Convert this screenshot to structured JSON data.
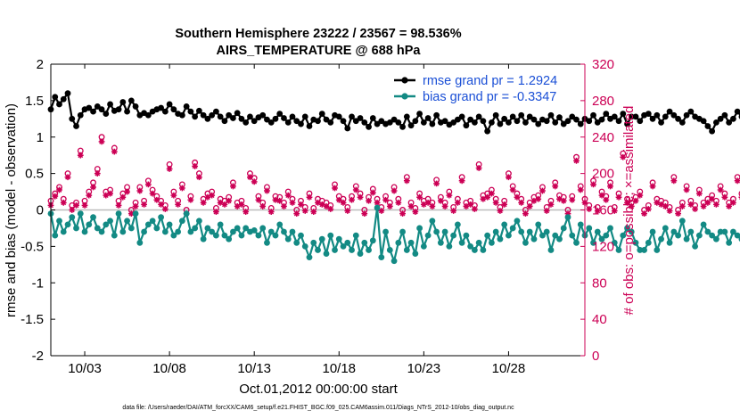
{
  "chart_data": {
    "type": "line",
    "title": "Southern Hemisphere 23222 / 23567 = 98.536%",
    "subtitle": "AIRS_TEMPERATURE @ 688 hPa",
    "xlabel": "Oct.01,2012 00:00:00 start",
    "ylabel_left": "rmse and bias (model - observation)",
    "ylabel_right": "# of obs: o=possible; ×=assimilated",
    "footer": "data file: /Users/raeder/DAI/ATM_forcXX/CAM6_setup/f.e21.FHIST_BGC.f09_025.CAM6assim.011/Diags_NTrS_2012-10/obs_diag_output.nc",
    "x_ticks": [
      {
        "label": "10/03",
        "day": 3
      },
      {
        "label": "10/08",
        "day": 8
      },
      {
        "label": "10/13",
        "day": 13
      },
      {
        "label": "10/18",
        "day": 18
      },
      {
        "label": "10/23",
        "day": 23
      },
      {
        "label": "10/28",
        "day": 28
      }
    ],
    "xlim_days": [
      1,
      32.5
    ],
    "ylim_left": [
      -2,
      2
    ],
    "y_ticks_left": [
      "-2",
      "-1.5",
      "-1",
      "-0.5",
      "0",
      "0.5",
      "1",
      "1.5",
      "2"
    ],
    "ylim_right": [
      0,
      320
    ],
    "y_ticks_right": [
      "0",
      "40",
      "80",
      "120",
      "160",
      "200",
      "240",
      "280",
      "320"
    ],
    "grid": false,
    "legend_position": "top-right",
    "series": [
      {
        "name": "rmse grand pr = 1.2924",
        "color": "#000000",
        "axis": "left",
        "x_day_start": 1.0,
        "x_day_step": 0.25,
        "values": [
          1.38,
          1.55,
          1.45,
          1.52,
          1.6,
          1.25,
          1.15,
          1.3,
          1.38,
          1.4,
          1.35,
          1.42,
          1.38,
          1.32,
          1.45,
          1.36,
          1.38,
          1.48,
          1.35,
          1.5,
          1.42,
          1.3,
          1.33,
          1.3,
          1.35,
          1.38,
          1.4,
          1.35,
          1.45,
          1.38,
          1.32,
          1.3,
          1.42,
          1.35,
          1.28,
          1.36,
          1.3,
          1.25,
          1.3,
          1.35,
          1.28,
          1.22,
          1.3,
          1.26,
          1.33,
          1.25,
          1.2,
          1.28,
          1.22,
          1.27,
          1.3,
          1.24,
          1.2,
          1.25,
          1.32,
          1.26,
          1.2,
          1.28,
          1.22,
          1.18,
          1.28,
          1.15,
          1.24,
          1.22,
          1.32,
          1.24,
          1.2,
          1.3,
          1.28,
          1.22,
          1.12,
          1.28,
          1.22,
          1.26,
          1.2,
          1.14,
          1.26,
          1.18,
          1.22,
          1.18,
          1.2,
          1.24,
          1.2,
          1.14,
          1.28,
          1.16,
          1.22,
          1.32,
          1.2,
          1.26,
          1.18,
          1.3,
          1.2,
          1.22,
          1.17,
          1.2,
          1.24,
          1.28,
          1.16,
          1.24,
          1.2,
          1.28,
          1.22,
          1.08,
          1.2,
          1.3,
          1.18,
          1.25,
          1.2,
          1.28,
          1.22,
          1.3,
          1.2,
          1.28,
          1.24,
          1.18,
          1.24,
          1.22,
          1.3,
          1.2,
          1.27,
          1.18,
          1.22,
          1.28,
          1.24,
          1.18,
          1.25,
          1.22,
          1.3,
          1.2,
          1.24,
          1.32,
          1.25,
          1.28,
          1.22,
          1.32,
          1.18,
          1.28,
          1.28,
          1.22,
          1.3,
          1.32,
          1.25,
          1.3,
          1.2,
          1.28,
          1.35,
          1.3,
          1.25,
          1.2,
          1.3,
          1.35,
          1.28,
          1.25,
          1.22,
          1.15,
          1.08,
          1.2,
          1.25,
          1.3,
          1.2,
          1.25,
          1.35,
          1.28,
          1.22,
          1.3,
          1.2,
          1.3,
          1.4,
          1.25,
          1.3,
          1.38,
          1.32,
          1.25,
          1.3,
          1.25
        ]
      },
      {
        "name": "bias grand pr = -0.3347",
        "color": "#138a84",
        "axis": "left",
        "x_day_start": 1.0,
        "x_day_step": 0.25,
        "values": [
          -0.05,
          -0.35,
          -0.15,
          -0.3,
          -0.2,
          -0.1,
          -0.25,
          -0.05,
          -0.3,
          -0.2,
          -0.1,
          -0.25,
          -0.3,
          -0.2,
          -0.15,
          -0.35,
          -0.05,
          -0.3,
          -0.15,
          -0.25,
          -0.05,
          -0.45,
          -0.3,
          -0.2,
          -0.15,
          -0.25,
          -0.1,
          -0.3,
          -0.2,
          -0.35,
          -0.3,
          -0.15,
          -0.05,
          -0.3,
          -0.25,
          -0.15,
          -0.4,
          -0.25,
          -0.3,
          -0.35,
          -0.2,
          -0.35,
          -0.4,
          -0.3,
          -0.25,
          -0.35,
          -0.25,
          -0.3,
          -0.28,
          -0.35,
          -0.25,
          -0.45,
          -0.3,
          -0.35,
          -0.2,
          -0.3,
          -0.4,
          -0.3,
          -0.45,
          -0.35,
          -0.5,
          -0.65,
          -0.45,
          -0.55,
          -0.4,
          -0.6,
          -0.35,
          -0.55,
          -0.4,
          -0.5,
          -0.45,
          -0.55,
          -0.35,
          -0.6,
          -0.45,
          -0.55,
          -0.42,
          0.03,
          -0.65,
          -0.3,
          -0.55,
          -0.7,
          -0.45,
          -0.3,
          -0.55,
          -0.45,
          -0.6,
          -0.25,
          -0.5,
          -0.35,
          -0.15,
          -0.3,
          -0.45,
          -0.3,
          -0.5,
          -0.35,
          -0.2,
          -0.45,
          -0.35,
          -0.5,
          -0.55,
          -0.45,
          -0.55,
          -0.35,
          -0.45,
          -0.3,
          -0.4,
          -0.2,
          -0.35,
          -0.25,
          -0.15,
          -0.3,
          -0.45,
          -0.3,
          -0.4,
          -0.2,
          -0.35,
          -0.3,
          -0.55,
          -0.35,
          -0.4,
          -0.25,
          -0.1,
          -0.35,
          -0.45,
          -0.2,
          -0.35,
          -0.25,
          -0.45,
          -0.3,
          -0.4,
          -0.35,
          -0.25,
          -0.45,
          -0.55,
          -0.35,
          -0.25,
          -0.3,
          -0.45,
          -0.55,
          -0.55,
          -0.45,
          -0.3,
          -0.55,
          -0.4,
          -0.25,
          -0.45,
          -0.3,
          -0.35,
          -0.15,
          -0.4,
          -0.3,
          -0.5,
          -0.35,
          -0.2,
          -0.3,
          -0.35,
          -0.4,
          -0.3,
          -0.3,
          -0.45,
          -0.3,
          -0.35,
          -0.4,
          -0.3,
          -0.55,
          -0.3,
          -0.45,
          -0.2,
          -0.3,
          -0.35,
          -0.25,
          -0.38,
          -0.5,
          -0.35,
          -0.15,
          -0.25,
          -0.35,
          -0.2,
          -0.3,
          -0.4,
          -0.38,
          -0.3,
          -0.42,
          -0.35,
          -0.4,
          -0.3,
          -0.42,
          -0.3,
          -0.4,
          -0.1
        ]
      },
      {
        "name": "obs possible",
        "color": "#cc0055",
        "marker": "circle",
        "axis": "right",
        "x_day_start": 1.0,
        "x_day_step": 0.25,
        "values": [
          170,
          178,
          185,
          172,
          200,
          165,
          168,
          225,
          170,
          180,
          190,
          205,
          240,
          180,
          182,
          228,
          170,
          178,
          185,
          160,
          168,
          185,
          170,
          192,
          182,
          175,
          170,
          165,
          210,
          180,
          170,
          188,
          160,
          175,
          212,
          200,
          172,
          178,
          180,
          162,
          172,
          170,
          174,
          190,
          168,
          170,
          162,
          200,
          195,
          175,
          168,
          185,
          162,
          175,
          174,
          168,
          180,
          172,
          160,
          170,
          163,
          178,
          162,
          172,
          170,
          168,
          165,
          188,
          175,
          172,
          163,
          175,
          186,
          178,
          160,
          174,
          183,
          172,
          163,
          175,
          168,
          185,
          172,
          160,
          196,
          168,
          162,
          178,
          170,
          172,
          168,
          193,
          174,
          168,
          180,
          163,
          172,
          196,
          168,
          170,
          165,
          210,
          176,
          178,
          182,
          172,
          163,
          170,
          200,
          186,
          178,
          172,
          160,
          168,
          174,
          176,
          185,
          163,
          170,
          190,
          176,
          174,
          160,
          175,
          218,
          186,
          172,
          165,
          192,
          163,
          180,
          175,
          190,
          163,
          178,
          222,
          172,
          168,
          174,
          180,
          160,
          165,
          190,
          172,
          170,
          168,
          163,
          196,
          160,
          168,
          186,
          170,
          165,
          182,
          168,
          172,
          176,
          170,
          186,
          178,
          168,
          172,
          196,
          178,
          170,
          174,
          185,
          176,
          172,
          190,
          183,
          182,
          176,
          178,
          185,
          168,
          172,
          163,
          180,
          174,
          168,
          190,
          220,
          176,
          200,
          176,
          176,
          172,
          182,
          174
        ]
      },
      {
        "name": "obs assimilated",
        "color": "#cc0055",
        "marker": "asterisk",
        "axis": "right",
        "x_day_start": 1.0,
        "x_day_step": 0.25,
        "values": [
          165,
          175,
          182,
          168,
          196,
          160,
          165,
          220,
          165,
          176,
          185,
          200,
          235,
          176,
          178,
          224,
          165,
          174,
          180,
          156,
          164,
          181,
          166,
          188,
          178,
          171,
          166,
          161,
          205,
          176,
          166,
          184,
          156,
          171,
          208,
          196,
          168,
          174,
          176,
          158,
          168,
          166,
          170,
          186,
          164,
          166,
          158,
          196,
          191,
          171,
          164,
          181,
          158,
          171,
          170,
          164,
          176,
          168,
          156,
          166,
          159,
          174,
          158,
          168,
          166,
          164,
          161,
          184,
          171,
          168,
          159,
          171,
          182,
          174,
          156,
          170,
          179,
          168,
          159,
          171,
          164,
          181,
          168,
          156,
          192,
          164,
          158,
          174,
          166,
          168,
          164,
          189,
          170,
          164,
          176,
          159,
          168,
          192,
          164,
          166,
          161,
          206,
          172,
          174,
          178,
          168,
          159,
          166,
          196,
          182,
          174,
          168,
          156,
          164,
          170,
          172,
          181,
          159,
          166,
          186,
          172,
          170,
          156,
          171,
          214,
          182,
          168,
          161,
          188,
          159,
          176,
          171,
          186,
          159,
          174,
          218,
          168,
          164,
          170,
          176,
          156,
          161,
          186,
          168,
          166,
          164,
          159,
          192,
          156,
          164,
          182,
          166,
          161,
          178,
          164,
          168,
          172,
          166,
          182,
          174,
          164,
          168,
          192,
          174,
          166,
          170,
          181,
          172,
          168,
          186,
          179,
          178,
          172,
          174,
          181,
          164,
          168,
          159,
          176,
          170,
          164,
          186,
          216,
          172,
          196,
          172,
          172,
          168,
          178,
          170
        ]
      }
    ],
    "reference_line": {
      "y": 0,
      "color": "#bbbbbb"
    }
  },
  "colors": {
    "rmse": "#000000",
    "bias": "#138a84",
    "obs": "#cc0055",
    "legend_text": "#1a4fd6",
    "axis": "#000000"
  }
}
